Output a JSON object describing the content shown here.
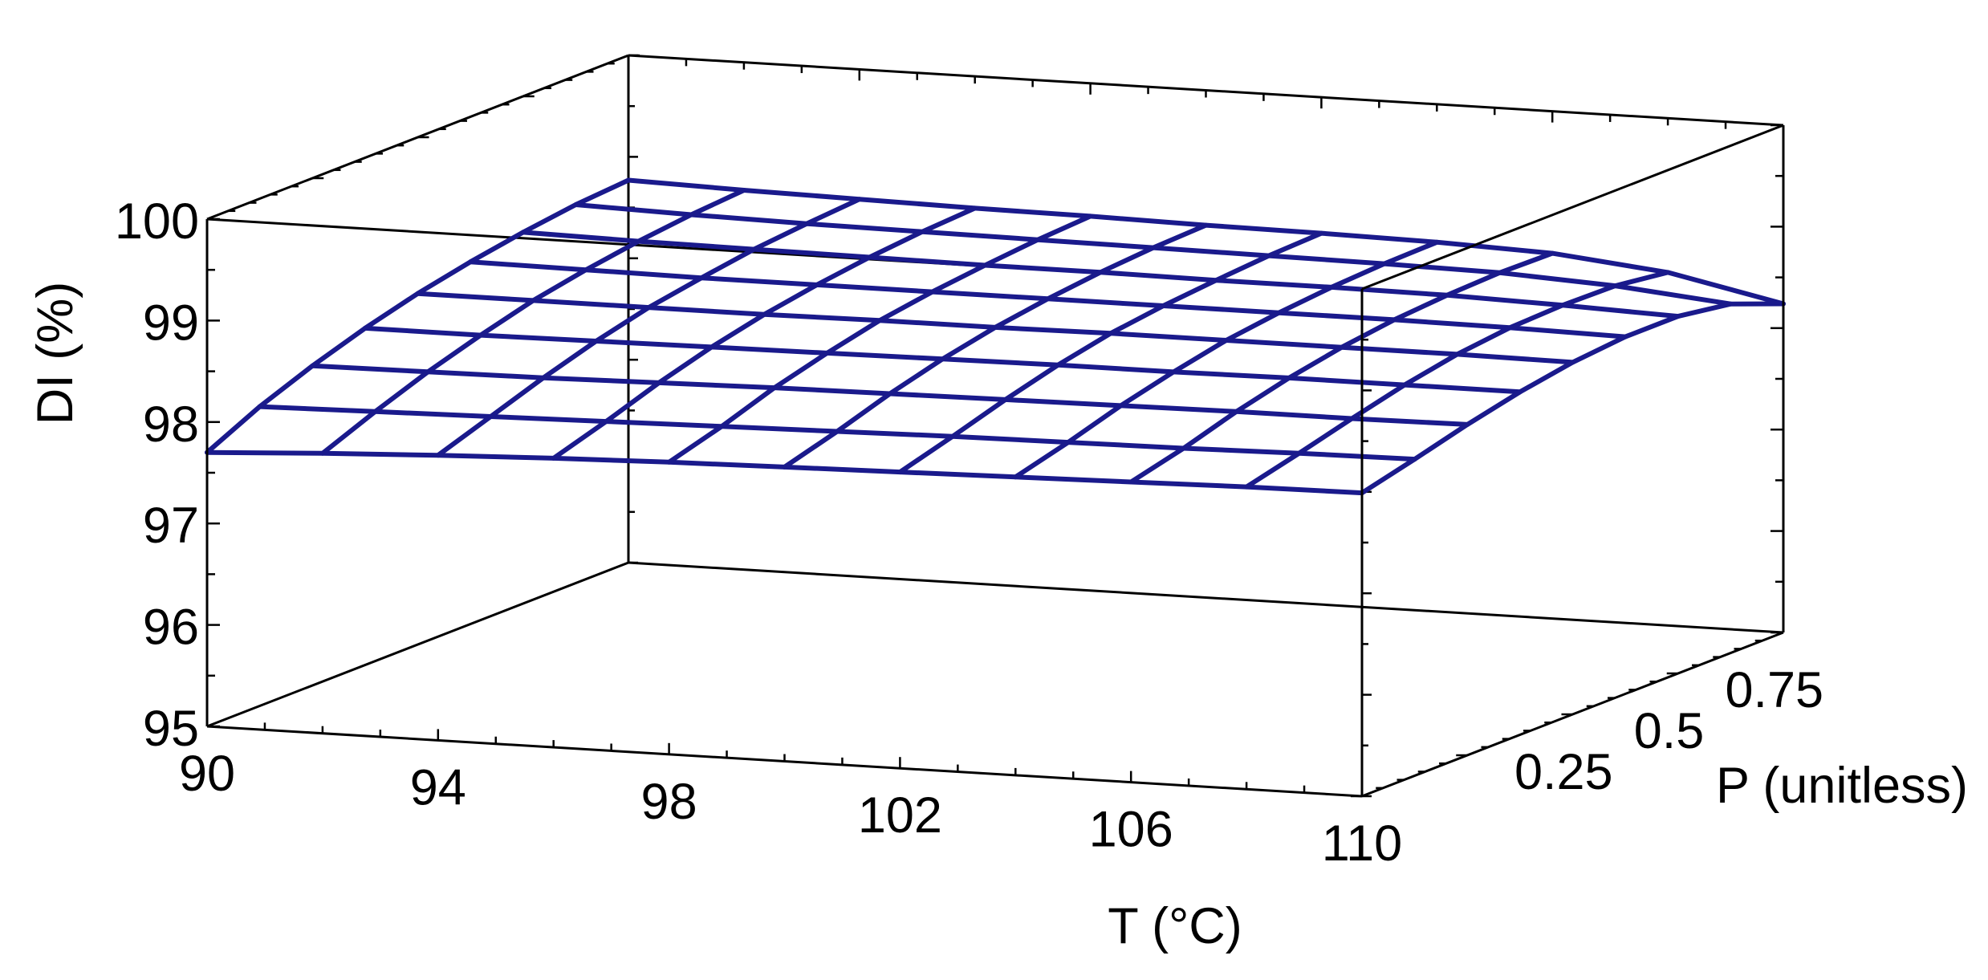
{
  "chart_data": {
    "type": "surface3d",
    "title": "",
    "xlabel": "T (°C)",
    "ylabel": "P (unitless)",
    "zlabel": "DI (%)",
    "xlim": [
      90,
      110
    ],
    "ylim": [
      0,
      1
    ],
    "zlim": [
      95,
      100
    ],
    "x_ticks": [
      "90",
      "94",
      "98",
      "102",
      "106",
      "110"
    ],
    "y_ticks": [
      "0.25",
      "0.5",
      "0.75"
    ],
    "z_ticks": [
      "95",
      "96",
      "97",
      "98",
      "99",
      "100"
    ],
    "x_grid": [
      90,
      92,
      94,
      96,
      98,
      100,
      102,
      104,
      106,
      108,
      110
    ],
    "y_grid": [
      0,
      0.125,
      0.25,
      0.375,
      0.5,
      0.625,
      0.75,
      0.875,
      1
    ],
    "z": [
      [
        97.7,
        97.76,
        97.81,
        97.85,
        97.88,
        97.9,
        97.92,
        97.94,
        97.96,
        97.98,
        97.99
      ],
      [
        97.95,
        97.97,
        97.99,
        98.01,
        98.03,
        98.05,
        98.07,
        98.08,
        98.09,
        98.11,
        98.12
      ],
      [
        98.15,
        98.16,
        98.17,
        98.19,
        98.21,
        98.22,
        98.23,
        98.24,
        98.25,
        98.25,
        98.26
      ],
      [
        98.32,
        98.32,
        98.33,
        98.34,
        98.35,
        98.36,
        98.37,
        98.37,
        98.38,
        98.38,
        98.38
      ],
      [
        98.46,
        98.46,
        98.46,
        98.46,
        98.47,
        98.47,
        98.48,
        98.48,
        98.48,
        98.48,
        98.47
      ],
      [
        98.57,
        98.56,
        98.55,
        98.55,
        98.55,
        98.55,
        98.55,
        98.55,
        98.55,
        98.54,
        98.52
      ],
      [
        98.66,
        98.64,
        98.63,
        98.62,
        98.61,
        98.61,
        98.6,
        98.6,
        98.59,
        98.56,
        98.52
      ],
      [
        98.73,
        98.7,
        98.68,
        98.67,
        98.66,
        98.65,
        98.64,
        98.63,
        98.61,
        98.55,
        98.44
      ],
      [
        98.77,
        98.74,
        98.72,
        98.7,
        98.69,
        98.67,
        98.66,
        98.64,
        98.6,
        98.48,
        98.24
      ]
    ],
    "surface_color": "#1a1a8c",
    "frame_color": "#000000",
    "grid": false,
    "legend": "none"
  }
}
